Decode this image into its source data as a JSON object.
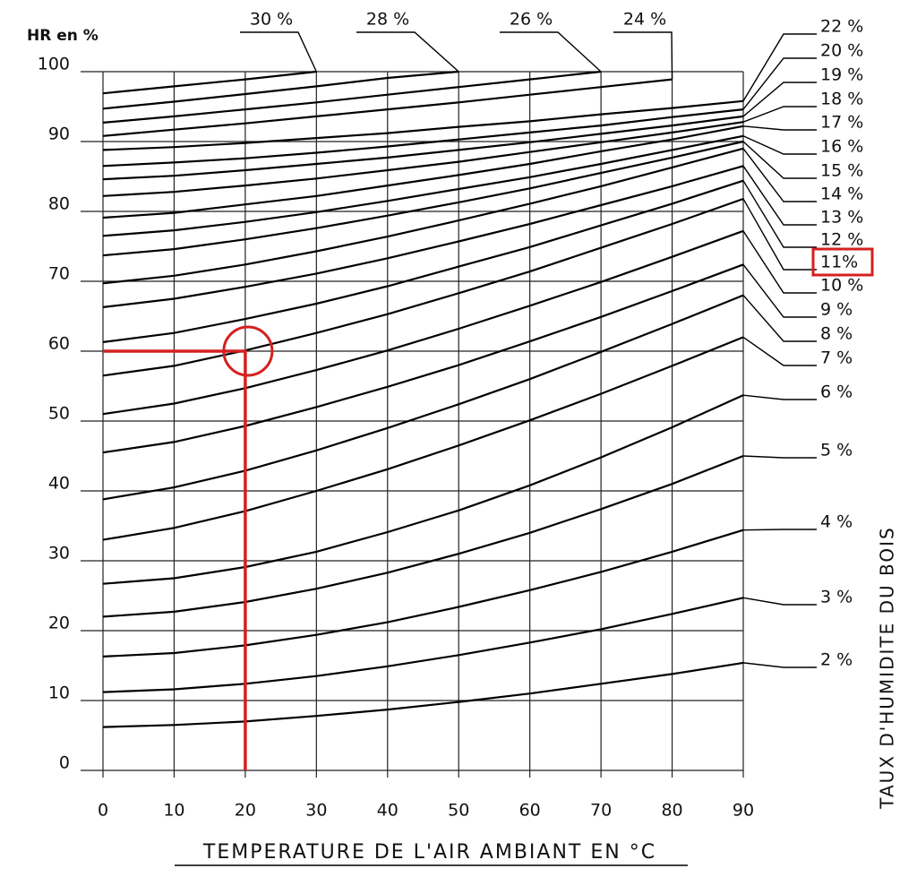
{
  "chart_data": {
    "type": "line",
    "y_axis_label": "HR en %",
    "x_axis_label": "TEMPERATURE DE L'AIR AMBIANT EN °C",
    "right_axis_label": "TAUX D'HUMIDITE DU BOIS",
    "x": [
      0,
      10,
      20,
      30,
      40,
      50,
      60,
      70,
      80,
      90
    ],
    "xlim": [
      0,
      90
    ],
    "ylim": [
      0,
      100
    ],
    "xticks": [
      0,
      10,
      20,
      30,
      40,
      50,
      60,
      70,
      80,
      90
    ],
    "yticks": [
      0,
      10,
      20,
      30,
      40,
      50,
      60,
      70,
      80,
      90,
      100
    ],
    "grid": true,
    "highlight": {
      "x": 20,
      "y": 60,
      "series": "11%",
      "color": "#d42020"
    },
    "series": [
      {
        "name": "30 %",
        "color": "#000000",
        "values": [
          96.9,
          97.9,
          98.9,
          100,
          null,
          null,
          null,
          null,
          null,
          null
        ]
      },
      {
        "name": "28 %",
        "color": "#000000",
        "values": [
          94.7,
          95.7,
          96.8,
          97.9,
          99.1,
          100,
          null,
          null,
          null,
          null
        ]
      },
      {
        "name": "26 %",
        "color": "#000000",
        "values": [
          92.7,
          93.6,
          94.6,
          95.6,
          96.7,
          97.8,
          98.9,
          100,
          null,
          null
        ]
      },
      {
        "name": "24 %",
        "color": "#000000",
        "values": [
          90.8,
          91.7,
          92.6,
          93.6,
          94.6,
          95.6,
          96.7,
          97.8,
          98.9,
          null
        ]
      },
      {
        "name": "22 %",
        "color": "#000000",
        "values": [
          88.8,
          89.2,
          89.8,
          90.5,
          91.2,
          92.1,
          92.9,
          93.9,
          94.8,
          95.8
        ]
      },
      {
        "name": "20 %",
        "color": "#000000",
        "values": [
          86.5,
          87.0,
          87.6,
          88.4,
          89.3,
          90.3,
          91.3,
          92.3,
          93.5,
          94.6
        ]
      },
      {
        "name": "19 %",
        "color": "#000000",
        "values": [
          84.6,
          85.1,
          85.9,
          86.8,
          87.7,
          88.8,
          89.9,
          91.1,
          92.3,
          93.6
        ]
      },
      {
        "name": "18 %",
        "color": "#000000",
        "values": [
          82.2,
          82.8,
          83.7,
          84.7,
          85.9,
          87.1,
          88.5,
          89.9,
          91.3,
          92.8
        ]
      },
      {
        "name": "17 %",
        "color": "#000000",
        "values": [
          79.1,
          79.8,
          81.0,
          82.2,
          83.7,
          85.2,
          86.8,
          88.6,
          90.3,
          92.2
        ]
      },
      {
        "name": "16 %",
        "color": "#000000",
        "values": [
          76.5,
          77.3,
          78.5,
          79.9,
          81.5,
          83.2,
          84.9,
          86.8,
          88.8,
          90.8
        ]
      },
      {
        "name": "15 %",
        "color": "#000000",
        "values": [
          73.7,
          74.6,
          76.0,
          77.6,
          79.4,
          81.3,
          83.3,
          85.5,
          87.7,
          90
        ]
      },
      {
        "name": "14 %",
        "color": "#000000",
        "values": [
          69.7,
          70.8,
          72.4,
          74.3,
          76.4,
          78.7,
          81.1,
          83.6,
          86.3,
          89
        ]
      },
      {
        "name": "13 %",
        "color": "#000000",
        "values": [
          66.3,
          67.5,
          69.2,
          71.1,
          73.3,
          75.7,
          78.2,
          80.9,
          83.6,
          86.5
        ]
      },
      {
        "name": "12 %",
        "color": "#000000",
        "values": [
          61.3,
          62.6,
          64.6,
          66.8,
          69.3,
          72.1,
          74.9,
          78.0,
          81.1,
          84.4
        ]
      },
      {
        "name": "11%",
        "color": "#000000",
        "values": [
          56.5,
          57.9,
          60.1,
          62.6,
          65.3,
          68.3,
          71.4,
          74.8,
          78.2,
          81.8
        ]
      },
      {
        "name": "10 %",
        "color": "#000000",
        "values": [
          51,
          52.5,
          54.7,
          57.3,
          60.1,
          63.2,
          66.5,
          69.9,
          73.5,
          77.2
        ]
      },
      {
        "name": "9 %",
        "color": "#000000",
        "values": [
          45.5,
          47.0,
          49.3,
          52.0,
          54.9,
          58.0,
          61.4,
          64.9,
          68.6,
          72.4
        ]
      },
      {
        "name": "8 %",
        "color": "#000000",
        "values": [
          38.8,
          40.5,
          42.9,
          45.8,
          49.0,
          52.4,
          56.0,
          59.9,
          63.9,
          68
        ]
      },
      {
        "name": "7 %",
        "color": "#000000",
        "values": [
          33,
          34.7,
          37.1,
          40.0,
          43.1,
          46.5,
          50.1,
          53.9,
          57.9,
          62
        ]
      },
      {
        "name": "6 %",
        "color": "#000000",
        "values": [
          26.7,
          27.5,
          29.1,
          31.3,
          34.1,
          37.2,
          40.8,
          44.8,
          49.1,
          53.7
        ]
      },
      {
        "name": "5 %",
        "color": "#000000",
        "values": [
          22,
          22.7,
          24.1,
          26.0,
          28.3,
          31.0,
          34.0,
          37.4,
          41.0,
          45
        ]
      },
      {
        "name": "4 %",
        "color": "#000000",
        "values": [
          16.3,
          16.8,
          17.9,
          19.4,
          21.2,
          23.4,
          25.8,
          28.4,
          31.3,
          34.4
        ]
      },
      {
        "name": "3 %",
        "color": "#000000",
        "values": [
          11.2,
          11.6,
          12.4,
          13.5,
          14.9,
          16.5,
          18.3,
          20.2,
          22.4,
          24.7
        ]
      },
      {
        "name": "2 %",
        "color": "#000000",
        "values": [
          6.2,
          6.5,
          7.0,
          7.8,
          8.7,
          9.8,
          11.0,
          12.4,
          13.8,
          15.4
        ]
      }
    ]
  }
}
